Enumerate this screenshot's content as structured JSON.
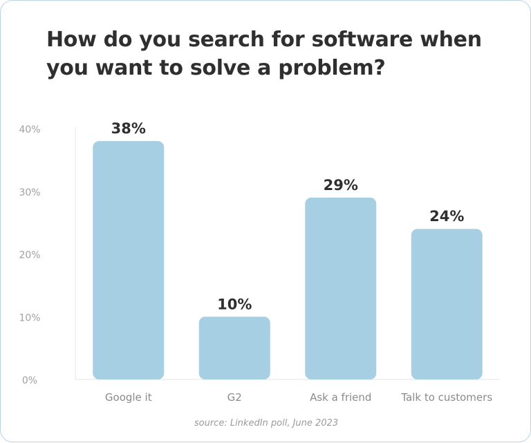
{
  "title": "How do you search for software when you want to solve a problem?",
  "source": "source: LinkedIn poll, June 2023",
  "colors": {
    "bar": "#a7cfe3",
    "axis": "#e3e3e3",
    "tick_text": "#a0a0a0",
    "value_text": "#2f2f2f",
    "category_text": "#8a8a8a"
  },
  "chart_data": {
    "type": "bar",
    "categories": [
      "Google it",
      "G2",
      "Ask a friend",
      "Talk to customers"
    ],
    "values": [
      38,
      10,
      29,
      24
    ],
    "value_labels": [
      "38%",
      "10%",
      "29%",
      "24%"
    ],
    "yticks": [
      0,
      10,
      20,
      30,
      40
    ],
    "ytick_labels": [
      "0%",
      "10%",
      "20%",
      "30%",
      "40%"
    ],
    "ylim": [
      0,
      40
    ],
    "grid": false,
    "title": "How do you search for software when you want to solve a problem?",
    "xlabel": "",
    "ylabel": ""
  }
}
